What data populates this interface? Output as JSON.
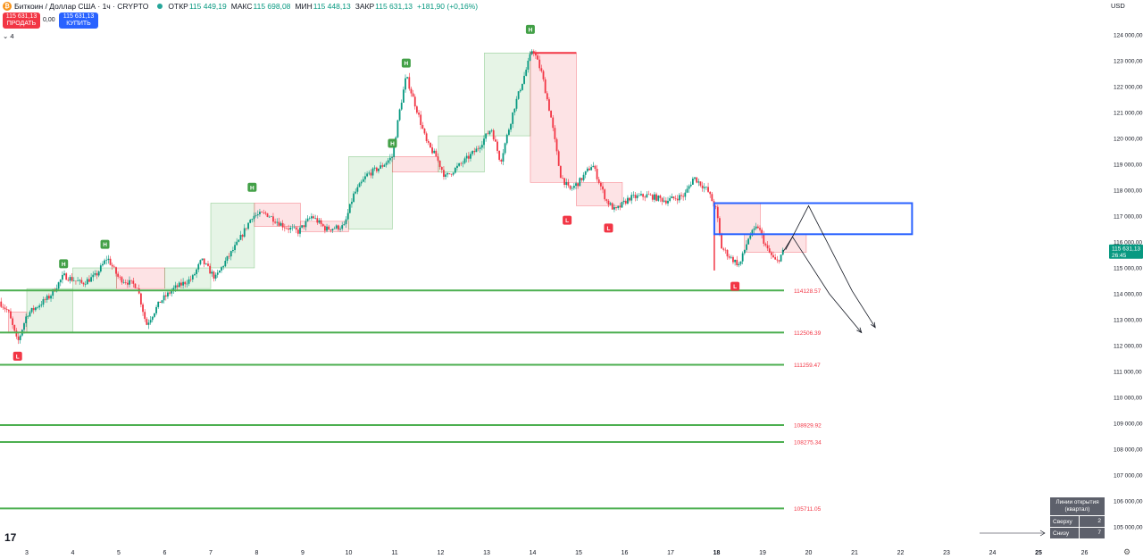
{
  "header": {
    "symbol": "Биткоин / Доллар США · 1ч · CRYPTO",
    "coin_glyph": "₿",
    "open_label": "ОТКР",
    "open": "115 449,19",
    "high_label": "МАКС",
    "high": "115 698,08",
    "low_label": "МИН",
    "low": "115 448,13",
    "close_label": "ЗАКР",
    "close": "115 631,13",
    "change": "+181,90 (+0,16%)"
  },
  "trade": {
    "sell_price": "115 631,13",
    "sell_label": "ПРОДАТЬ",
    "spread": "0,00",
    "buy_price": "115 631,13",
    "buy_label": "КУПИТЬ",
    "collapse": "⌄ 4"
  },
  "currency": "USD",
  "price_axis": {
    "labels": [
      "124 000,00",
      "123 000,00",
      "122 000,00",
      "121 000,00",
      "120 000,00",
      "119 000,00",
      "118 000,00",
      "117 000,00",
      "116 000,00",
      "115 000,00",
      "114 000,00",
      "113 000,00",
      "112 000,00",
      "111 000,00",
      "110 000,00",
      "109 000,00",
      "108 000,00",
      "107 000,00",
      "106 000,00",
      "105 000,00"
    ],
    "current_price": "115 631,13",
    "countdown": "26:45"
  },
  "time_axis": {
    "labels": [
      "3",
      "4",
      "5",
      "6",
      "7",
      "8",
      "9",
      "10",
      "11",
      "12",
      "13",
      "14",
      "15",
      "16",
      "17",
      "18",
      "19",
      "20",
      "21",
      "22",
      "23",
      "24",
      "25",
      "26"
    ],
    "bold": [
      "18",
      "25"
    ]
  },
  "levels": [
    {
      "label": "114128.57",
      "value": 114128.57
    },
    {
      "label": "112506.39",
      "value": 112506.39
    },
    {
      "label": "111259.47",
      "value": 111259.47
    },
    {
      "label": "108929.92",
      "value": 108929.92
    },
    {
      "label": "108275.34",
      "value": 108275.34
    },
    {
      "label": "105711.05",
      "value": 105711.05
    }
  ],
  "markers": [
    {
      "text": "L",
      "day": 2.8,
      "price": 111900,
      "type": "low"
    },
    {
      "text": "H",
      "day": 3.8,
      "price": 114850,
      "type": "high"
    },
    {
      "text": "H",
      "day": 4.7,
      "price": 115600,
      "type": "high"
    },
    {
      "text": "H",
      "day": 7.9,
      "price": 117800,
      "type": "high"
    },
    {
      "text": "H",
      "day": 10.95,
      "price": 119500,
      "type": "high"
    },
    {
      "text": "H",
      "day": 11.25,
      "price": 122600,
      "type": "high"
    },
    {
      "text": "H",
      "day": 13.95,
      "price": 123900,
      "type": "high"
    },
    {
      "text": "L",
      "day": 14.75,
      "price": 117150,
      "type": "low"
    },
    {
      "text": "L",
      "day": 15.65,
      "price": 116850,
      "type": "low"
    },
    {
      "text": "L",
      "day": 18.4,
      "price": 114600,
      "type": "low"
    }
  ],
  "open_lines_table": {
    "title": "Линии открытия (квартал)",
    "rows": [
      {
        "label": "Сверху",
        "value": "2"
      },
      {
        "label": "Снизу",
        "value": "7"
      }
    ]
  },
  "logo": "17",
  "colors": {
    "up": "#089981",
    "down": "#f23645",
    "level_line": "#4caf50",
    "zone_green": "#4caf50",
    "zone_red": "#f23645",
    "blue_box": "#2962ff"
  }
}
